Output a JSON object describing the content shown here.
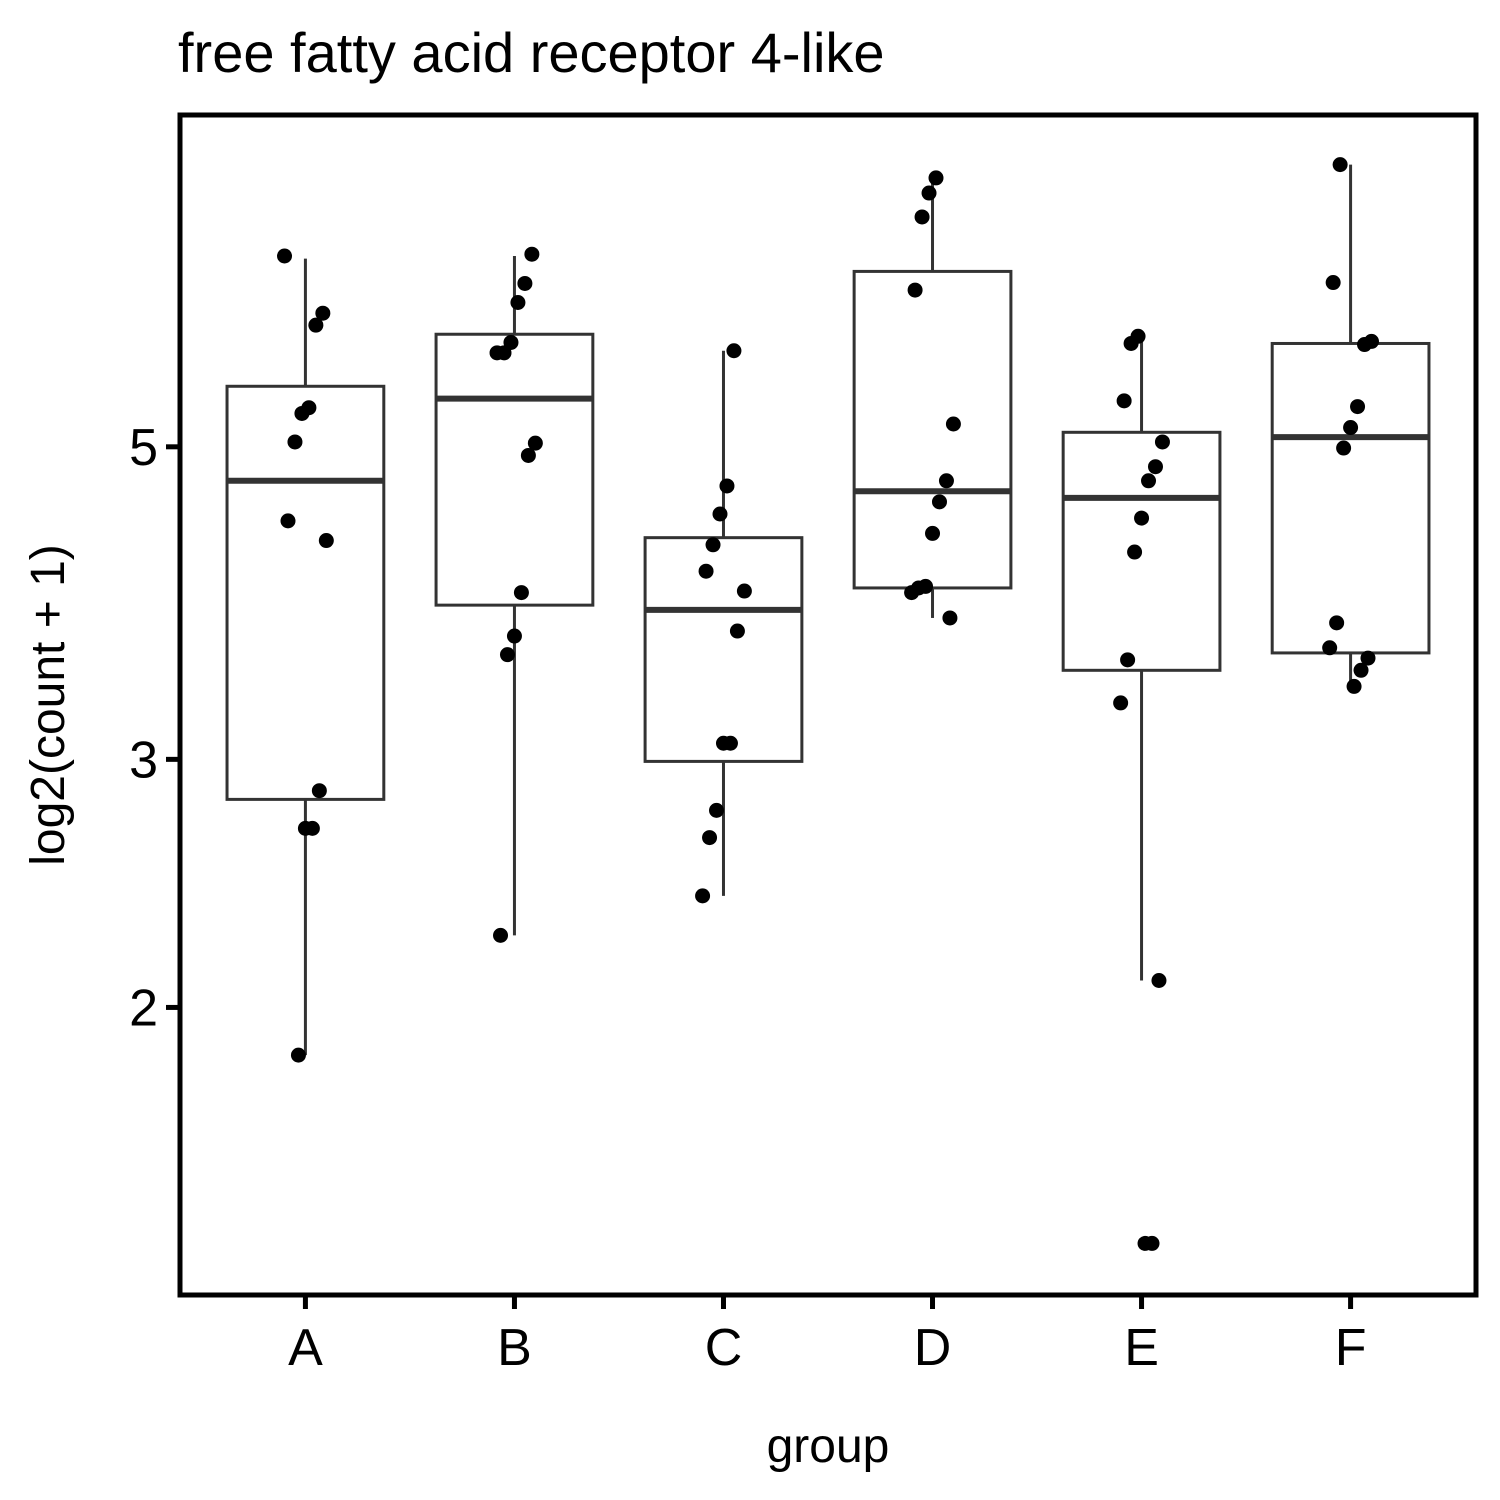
{
  "chart_data": {
    "type": "box",
    "title": "free fatty acid receptor 4-like",
    "x_label": "group",
    "y_label": "log2(count + 1)",
    "categories": [
      "A",
      "B",
      "C",
      "D",
      "E",
      "F"
    ],
    "log_y": true,
    "ylim": [
      1.25,
      8.6
    ],
    "yticks": [
      2,
      3,
      5
    ],
    "box_color": "#333333",
    "point_color": "#000000",
    "boxes": [
      {
        "whisker_low": 1.85,
        "q1": 2.81,
        "median": 4.73,
        "q3": 5.52,
        "whisker_high": 6.8
      },
      {
        "whisker_low": 2.25,
        "q1": 3.86,
        "median": 5.41,
        "q3": 6.01,
        "whisker_high": 6.83
      },
      {
        "whisker_low": 2.4,
        "q1": 2.99,
        "median": 3.83,
        "q3": 4.31,
        "whisker_high": 5.85
      },
      {
        "whisker_low": 3.78,
        "q1": 3.97,
        "median": 4.65,
        "q3": 6.66,
        "whisker_high": 7.73
      },
      {
        "whisker_low": 2.09,
        "q1": 3.47,
        "median": 4.6,
        "q3": 5.12,
        "whisker_high": 5.98
      },
      {
        "whisker_low": 3.38,
        "q1": 3.57,
        "median": 5.08,
        "q3": 5.92,
        "whisker_high": 7.93
      }
    ],
    "points": [
      [
        6.83,
        6.22,
        6.1,
        5.33,
        5.28,
        5.04,
        4.43,
        4.29,
        2.85,
        2.68,
        2.68,
        1.85
      ],
      [
        6.85,
        6.53,
        6.33,
        5.93,
        5.83,
        5.83,
        5.03,
        4.93,
        3.94,
        3.67,
        3.56,
        2.25
      ],
      [
        5.85,
        4.69,
        4.48,
        4.26,
        4.08,
        3.95,
        3.7,
        3.08,
        3.08,
        2.76,
        2.64,
        2.4
      ],
      [
        7.76,
        7.57,
        7.28,
        6.46,
        5.19,
        4.73,
        4.57,
        4.34,
        3.98,
        3.97,
        3.94,
        3.78
      ],
      [
        5.99,
        5.92,
        5.39,
        5.04,
        4.84,
        4.73,
        4.45,
        4.21,
        3.53,
        3.29,
        2.09,
        1.36,
        1.36
      ],
      [
        7.93,
        6.54,
        5.94,
        5.91,
        5.34,
        5.16,
        4.99,
        3.75,
        3.6,
        3.54,
        3.47,
        3.38
      ]
    ]
  }
}
